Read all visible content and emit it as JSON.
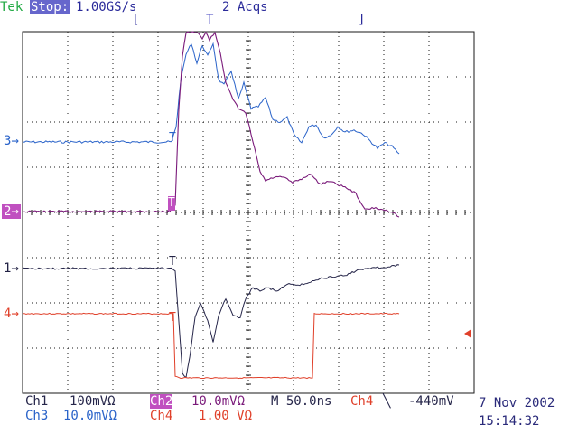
{
  "header": {
    "brand": "Tek",
    "run_state": "Stop:",
    "sample_rate": "1.00GS/s",
    "acquisitions": "2 Acqs",
    "bracket_left": "[",
    "trigger_mark": "T",
    "bracket_right": "]"
  },
  "channel_markers": [
    {
      "label": "3",
      "color": "#2a63c9"
    },
    {
      "label": "2",
      "color": "#b040b0"
    },
    {
      "label": "1",
      "color": "#222244"
    },
    {
      "label": "4",
      "color": "#e0402a"
    }
  ],
  "trigger_labels": [
    "T",
    "T",
    "T",
    "T"
  ],
  "footer": {
    "ch1": "Ch1",
    "ch1_scale": "100mVΩ",
    "ch2": "Ch2",
    "ch2_scale": "10.0mVΩ",
    "timebase": "M 50.0ns",
    "trig_source": "Ch4",
    "trig_slope": "╲",
    "trig_level": "-440mV",
    "ch3": "Ch3",
    "ch3_scale": "10.0mVΩ",
    "ch4": "Ch4",
    "ch4_scale": "1.00 VΩ",
    "date": "7 Nov 2002",
    "time": "15:14:32"
  },
  "colors": {
    "ch1": "#26264a",
    "ch2": "#7a1a7a",
    "ch3": "#2a63c9",
    "ch4": "#e0402a",
    "graticule": "#1a1a1a",
    "ch2_badge_bg": "#c050c0",
    "header_badge_bg": "#6666cc",
    "brand": "#22aa44"
  },
  "waveform_icons": [
    "trigger-level-arrow-icon",
    "falling-edge-icon"
  ]
}
